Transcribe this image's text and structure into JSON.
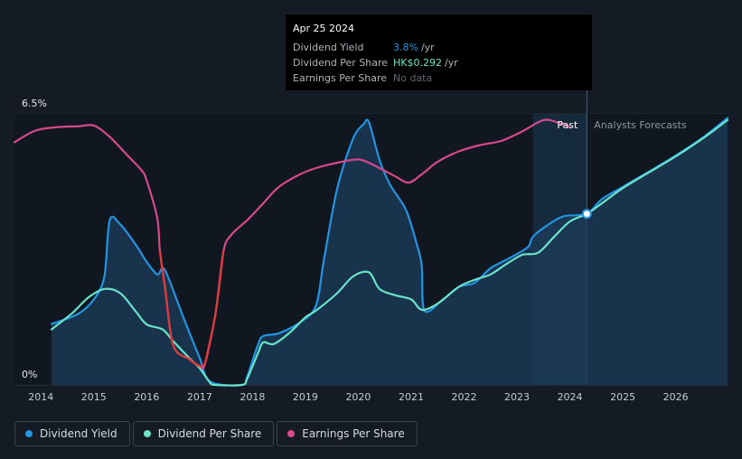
{
  "tooltip": {
    "date": "Apr 25 2024",
    "rows": [
      {
        "label": "Dividend Yield",
        "value": "3.8%",
        "unit": "/yr",
        "color": "#2394df"
      },
      {
        "label": "Dividend Per Share",
        "value": "HK$0.292",
        "unit": "/yr",
        "color": "#6ae3c8"
      },
      {
        "label": "Earnings Per Share",
        "value": "No data",
        "unit": "",
        "color": "#5d6670"
      }
    ]
  },
  "legend": [
    {
      "label": "Dividend Yield",
      "color": "#2394df"
    },
    {
      "label": "Dividend Per Share",
      "color": "#6ae3c8"
    },
    {
      "label": "Earnings Per Share",
      "color": "#d64a8b"
    }
  ],
  "chart_data": {
    "type": "line",
    "ytick_labels": [
      "6.5%",
      "0%"
    ],
    "xtick_labels": [
      "2014",
      "2015",
      "2016",
      "2017",
      "2018",
      "2019",
      "2020",
      "2021",
      "2022",
      "2023",
      "2024",
      "2025",
      "2026"
    ],
    "xlim": [
      2013.5,
      2026.98
    ],
    "ylim": [
      0,
      6.5
    ],
    "past_label": "Past",
    "forecast_label": "Analysts Forecasts",
    "past_region_start": 2023.3,
    "cursor_x": 2024.32,
    "series": [
      {
        "name": "Dividend Yield",
        "color": "#2394df",
        "fill": true,
        "points": [
          [
            2014.2,
            1.46
          ],
          [
            2014.7,
            1.7
          ],
          [
            2015.0,
            2.05
          ],
          [
            2015.2,
            2.6
          ],
          [
            2015.3,
            3.95
          ],
          [
            2015.5,
            3.85
          ],
          [
            2015.8,
            3.35
          ],
          [
            2016.0,
            2.95
          ],
          [
            2016.2,
            2.65
          ],
          [
            2016.3,
            2.8
          ],
          [
            2016.4,
            2.6
          ],
          [
            2016.7,
            1.6
          ],
          [
            2017.0,
            0.65
          ],
          [
            2017.2,
            0.08
          ],
          [
            2017.8,
            0
          ],
          [
            2017.9,
            0.2
          ],
          [
            2018.1,
            0.95
          ],
          [
            2018.2,
            1.17
          ],
          [
            2018.5,
            1.24
          ],
          [
            2018.9,
            1.5
          ],
          [
            2019.2,
            1.9
          ],
          [
            2019.35,
            3.0
          ],
          [
            2019.6,
            4.7
          ],
          [
            2019.9,
            5.9
          ],
          [
            2020.1,
            6.25
          ],
          [
            2020.2,
            6.3
          ],
          [
            2020.4,
            5.4
          ],
          [
            2020.6,
            4.8
          ],
          [
            2020.9,
            4.2
          ],
          [
            2021.1,
            3.4
          ],
          [
            2021.2,
            2.85
          ],
          [
            2021.25,
            1.78
          ],
          [
            2021.6,
            2.05
          ],
          [
            2021.9,
            2.35
          ],
          [
            2022.2,
            2.45
          ],
          [
            2022.5,
            2.8
          ],
          [
            2022.8,
            3.0
          ],
          [
            2023.2,
            3.3
          ],
          [
            2023.3,
            3.55
          ],
          [
            2023.6,
            3.85
          ],
          [
            2023.9,
            4.05
          ],
          [
            2024.32,
            4.1
          ],
          [
            2024.6,
            4.45
          ],
          [
            2025.0,
            4.75
          ],
          [
            2025.5,
            5.12
          ],
          [
            2026.0,
            5.5
          ],
          [
            2026.5,
            5.92
          ],
          [
            2026.98,
            6.4
          ]
        ]
      },
      {
        "name": "Dividend Per Share",
        "color": "#6ae3c8",
        "fill": false,
        "points": [
          [
            2014.2,
            1.33
          ],
          [
            2014.6,
            1.73
          ],
          [
            2014.9,
            2.1
          ],
          [
            2015.2,
            2.3
          ],
          [
            2015.5,
            2.2
          ],
          [
            2015.8,
            1.75
          ],
          [
            2016.0,
            1.45
          ],
          [
            2016.3,
            1.33
          ],
          [
            2016.5,
            1.05
          ],
          [
            2016.8,
            0.65
          ],
          [
            2017.0,
            0.4
          ],
          [
            2017.2,
            0.05
          ],
          [
            2017.3,
            0
          ],
          [
            2017.8,
            0
          ],
          [
            2017.9,
            0.15
          ],
          [
            2018.1,
            0.75
          ],
          [
            2018.2,
            1.02
          ],
          [
            2018.4,
            0.98
          ],
          [
            2018.7,
            1.25
          ],
          [
            2019.0,
            1.62
          ],
          [
            2019.2,
            1.78
          ],
          [
            2019.6,
            2.2
          ],
          [
            2019.9,
            2.6
          ],
          [
            2020.2,
            2.7
          ],
          [
            2020.4,
            2.3
          ],
          [
            2020.7,
            2.15
          ],
          [
            2021.0,
            2.05
          ],
          [
            2021.2,
            1.8
          ],
          [
            2021.5,
            1.95
          ],
          [
            2021.9,
            2.35
          ],
          [
            2022.2,
            2.52
          ],
          [
            2022.5,
            2.65
          ],
          [
            2022.8,
            2.9
          ],
          [
            2023.1,
            3.12
          ],
          [
            2023.4,
            3.17
          ],
          [
            2023.7,
            3.55
          ],
          [
            2024.0,
            3.92
          ],
          [
            2024.32,
            4.1
          ],
          [
            2024.6,
            4.35
          ],
          [
            2025.0,
            4.72
          ],
          [
            2025.5,
            5.1
          ],
          [
            2026.0,
            5.48
          ],
          [
            2026.5,
            5.9
          ],
          [
            2026.98,
            6.35
          ]
        ]
      },
      {
        "name": "Earnings Per Share",
        "color": "#d64a8b",
        "fill": false,
        "points": [
          [
            2013.5,
            5.82
          ],
          [
            2013.9,
            6.1
          ],
          [
            2014.3,
            6.18
          ],
          [
            2014.7,
            6.2
          ],
          [
            2015.0,
            6.22
          ],
          [
            2015.3,
            5.95
          ],
          [
            2015.6,
            5.55
          ],
          [
            2015.9,
            5.15
          ],
          [
            2016.0,
            4.9
          ],
          [
            2016.2,
            4.0
          ],
          [
            2016.25,
            3.2
          ],
          [
            2016.35,
            2.3
          ],
          [
            2016.5,
            0.95
          ],
          [
            2016.8,
            0.62
          ],
          [
            2017.0,
            0.45
          ],
          [
            2017.1,
            0.5
          ],
          [
            2017.3,
            1.7
          ],
          [
            2017.45,
            3.2
          ],
          [
            2017.6,
            3.6
          ],
          [
            2017.9,
            3.95
          ],
          [
            2018.2,
            4.35
          ],
          [
            2018.5,
            4.75
          ],
          [
            2018.9,
            5.05
          ],
          [
            2019.2,
            5.2
          ],
          [
            2019.5,
            5.3
          ],
          [
            2019.9,
            5.4
          ],
          [
            2020.1,
            5.38
          ],
          [
            2020.4,
            5.2
          ],
          [
            2020.7,
            5.0
          ],
          [
            2020.95,
            4.85
          ],
          [
            2021.2,
            5.05
          ],
          [
            2021.5,
            5.35
          ],
          [
            2021.9,
            5.6
          ],
          [
            2022.3,
            5.75
          ],
          [
            2022.7,
            5.85
          ],
          [
            2023.1,
            6.08
          ],
          [
            2023.5,
            6.35
          ],
          [
            2023.8,
            6.28
          ],
          [
            2024.0,
            6.18
          ]
        ]
      }
    ],
    "earnings_decline_segments": [
      [
        2016.25,
        2017.1
      ],
      [
        2017.1,
        2017.45
      ]
    ]
  }
}
